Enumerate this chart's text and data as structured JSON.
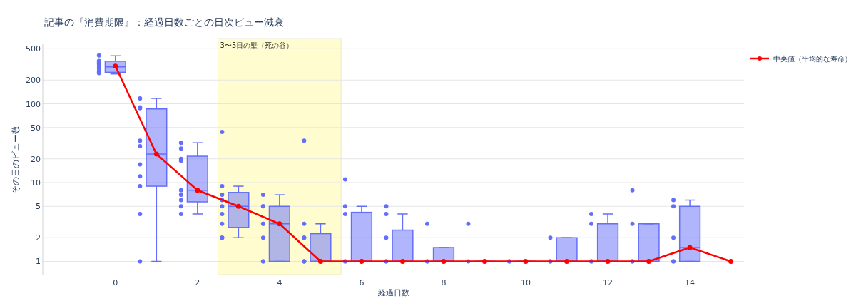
{
  "chart_data": {
    "type": "box",
    "title": "記事の『消費期限』：経過日数ごとの日次ビュー減衰",
    "xlabel": "経過日数",
    "ylabel": "その日のビュー数",
    "x": [
      0,
      1,
      2,
      3,
      4,
      5,
      6,
      7,
      8,
      9,
      10,
      11,
      12,
      13,
      14,
      15
    ],
    "xlim": [
      -1.77,
      15.32
    ],
    "xticks": [
      0,
      2,
      4,
      6,
      8,
      10,
      12,
      14
    ],
    "ylim": [
      0.68,
      570
    ],
    "yticks": [
      1,
      2,
      5,
      10,
      20,
      50,
      100,
      200,
      500
    ],
    "log": "y",
    "grid": "y",
    "legend": "top right",
    "bands": [
      {
        "axis": "x",
        "from": 2.5,
        "to": 5.5,
        "label": "3〜5日の壁（死の谷）",
        "color": "#fffdd0"
      }
    ],
    "series": [
      {
        "color": "#636efa",
        "boxes": [
          {
            "low": 239,
            "q1": 251,
            "median": 294,
            "q3": 347,
            "high": 406
          },
          {
            "low": 1,
            "q1": 9,
            "median": 23,
            "q3": 86,
            "high": 117
          },
          {
            "low": 4,
            "q1": 5.7,
            "median": 8,
            "q3": 21.6,
            "high": 32
          },
          {
            "low": 2,
            "q1": 2.7,
            "median": 5,
            "q3": 7.5,
            "high": 9
          },
          {
            "low": 1,
            "q1": 1,
            "median": 3,
            "q3": 5,
            "high": 7
          },
          {
            "low": 1,
            "q1": 1,
            "median": 1,
            "q3": 2.25,
            "high": 3
          },
          {
            "low": 1,
            "q1": 1,
            "median": 1,
            "q3": 4.2,
            "high": 5
          },
          {
            "low": 1,
            "q1": 1,
            "median": 1,
            "q3": 2.5,
            "high": 4
          },
          {
            "low": 1,
            "q1": 1,
            "median": 1,
            "q3": 1.5,
            "high": 1.5
          },
          {
            "low": 1,
            "q1": 1,
            "median": 1,
            "q3": 1,
            "high": 1
          },
          {
            "low": 1,
            "q1": 1,
            "median": 1,
            "q3": 1,
            "high": 1
          },
          {
            "low": 1,
            "q1": 1,
            "median": 1,
            "q3": 2,
            "high": 2
          },
          {
            "low": 1,
            "q1": 1,
            "median": 1,
            "q3": 3,
            "high": 4
          },
          {
            "low": 1,
            "q1": 1,
            "median": 1,
            "q3": 3,
            "high": 3
          },
          {
            "low": 1,
            "q1": 1,
            "median": 1.5,
            "q3": 5,
            "high": 6
          },
          null
        ]
      },
      {
        "type": "scatter",
        "color": "#636efa",
        "marker": "circle",
        "x": [
          -0.4,
          -0.4,
          -0.4,
          -0.4,
          -0.4,
          -0.4,
          -0.4,
          -0.4,
          -0.4,
          0.6,
          0.6,
          0.6,
          0.6,
          0.6,
          0.6,
          0.6,
          0.6,
          0.6,
          0.6,
          1.6,
          1.6,
          1.6,
          1.6,
          1.6,
          1.6,
          1.6,
          1.6,
          1.6,
          2.6,
          2.6,
          2.6,
          2.6,
          2.6,
          2.6,
          2.6,
          2.6,
          2.6,
          3.6,
          3.6,
          3.6,
          3.6,
          3.6,
          3.6,
          3.6,
          3.6,
          4.6,
          4.6,
          4.6,
          4.6,
          4.6,
          4.6,
          4.6,
          5.6,
          5.6,
          5.6,
          5.6,
          5.6,
          6.6,
          6.6,
          6.6,
          6.6,
          6.6,
          7.6,
          7.6,
          7.6,
          8.6,
          8.6,
          9.6,
          9.6,
          10.6,
          10.6,
          10.6,
          11.6,
          11.6,
          11.6,
          11.6,
          12.6,
          12.6,
          12.6,
          12.6,
          13.6,
          13.6,
          13.6,
          13.6,
          13.6
        ],
        "values": [
          410,
          350,
          340,
          320,
          300,
          280,
          260,
          250,
          245,
          117,
          90,
          88,
          34,
          29,
          17,
          12,
          9,
          4,
          1,
          32,
          27,
          20,
          19,
          8,
          7,
          6,
          5,
          4,
          44,
          9,
          7,
          6,
          5,
          4,
          3,
          2,
          2,
          7,
          5,
          5,
          3,
          3,
          2,
          1,
          1,
          34,
          3,
          2,
          2,
          1,
          1,
          1,
          11,
          5,
          4,
          1,
          1,
          5,
          4,
          2,
          1,
          1,
          3,
          1,
          1,
          3,
          1,
          1,
          1,
          2,
          1,
          1,
          4,
          3,
          1,
          1,
          8,
          3,
          1,
          1,
          6,
          5,
          2,
          1,
          1
        ]
      },
      {
        "type": "line",
        "name": "中央値（平均的な寿命）",
        "color": "#ff0000",
        "marker": "circle",
        "values": [
          300,
          23,
          8,
          5,
          3,
          1,
          1,
          1,
          1,
          1,
          1,
          1,
          1,
          1,
          1.5,
          1
        ]
      }
    ]
  }
}
